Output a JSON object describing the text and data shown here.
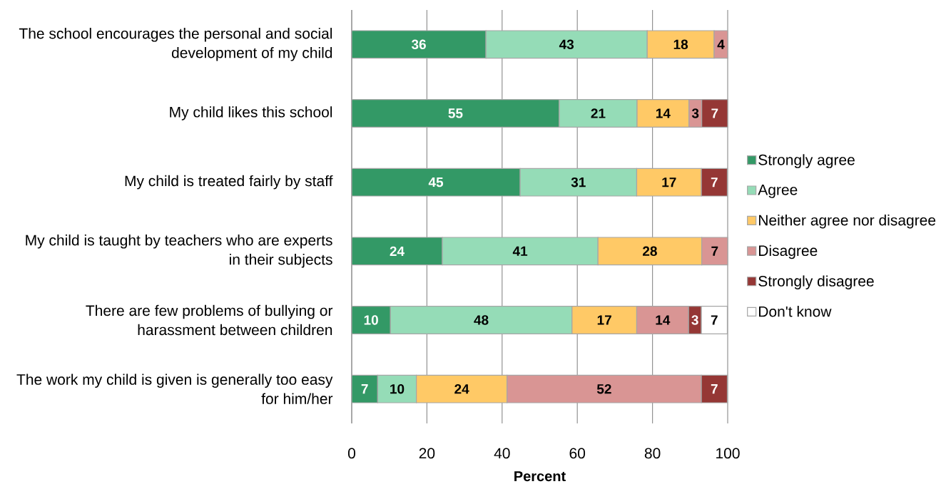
{
  "chart_data": {
    "type": "bar",
    "orientation": "horizontal",
    "stacked": true,
    "categories": [
      "The school encourages the personal and social development of my child",
      "My child likes this school",
      "My child is treated fairly by staff",
      "My child is taught by teachers who are experts in their subjects",
      "There are few problems of bullying or harassment between children",
      "The work my child is given is generally too easy for him/her"
    ],
    "series": [
      {
        "name": "Strongly agree",
        "color": "#339966",
        "values": [
          35.7,
          55.2,
          44.8,
          24.1,
          10.3,
          6.9
        ],
        "value_labels": [
          "36",
          "55",
          "45",
          "24",
          "10",
          "7"
        ]
      },
      {
        "name": "Agree",
        "color": "#95dcb7",
        "values": [
          42.9,
          20.7,
          31.0,
          41.4,
          48.3,
          10.3
        ],
        "value_labels": [
          "43",
          "21",
          "31",
          "41",
          "48",
          "10"
        ]
      },
      {
        "name": "Neither agree nor disagree",
        "color": "#ffc966",
        "values": [
          17.8,
          13.8,
          17.2,
          27.6,
          17.2,
          24.1
        ],
        "value_labels": [
          "18",
          "14",
          "17",
          "28",
          "17",
          "24"
        ]
      },
      {
        "name": "Disagree",
        "color": "#d99594",
        "values": [
          3.6,
          3.4,
          null,
          6.9,
          13.8,
          51.7
        ],
        "value_labels": [
          "4",
          "3",
          null,
          "7",
          "14",
          "52"
        ]
      },
      {
        "name": "Strongly disagree",
        "color": "#953735",
        "values": [
          null,
          6.9,
          6.9,
          null,
          3.4,
          6.9
        ],
        "value_labels": [
          null,
          "7",
          "7",
          null,
          "3",
          "7"
        ]
      },
      {
        "name": "Don't know",
        "color": "#ffffff",
        "values": [
          null,
          null,
          null,
          null,
          6.9,
          null
        ],
        "value_labels": [
          null,
          null,
          null,
          null,
          "7",
          null
        ]
      }
    ],
    "xlim": [
      0,
      100
    ],
    "xticks": [
      0,
      20,
      40,
      60,
      80,
      100
    ],
    "xlabel": "Percent",
    "grid": "x",
    "legend": "right"
  }
}
